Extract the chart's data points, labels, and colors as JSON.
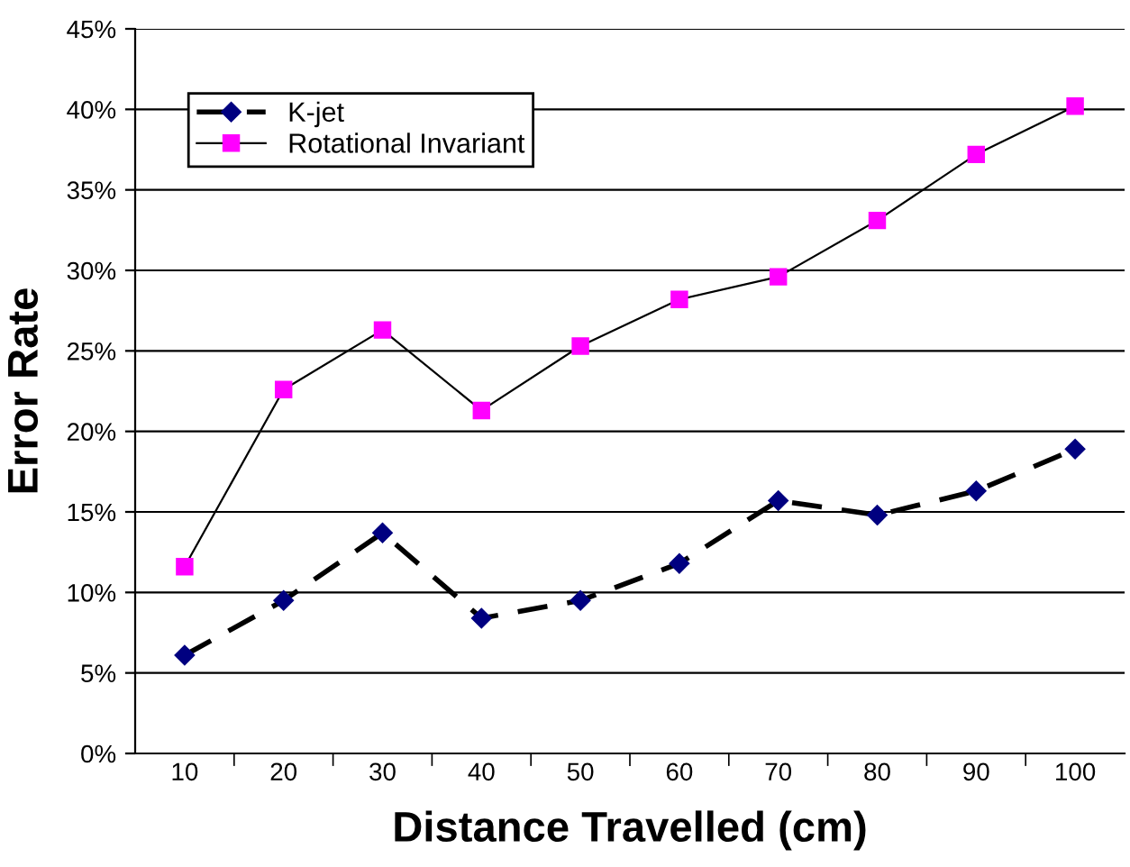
{
  "chart_data": {
    "type": "line",
    "xlabel": "Distance Travelled (cm)",
    "ylabel": "Error Rate",
    "categories": [
      "10",
      "20",
      "30",
      "40",
      "50",
      "60",
      "70",
      "80",
      "90",
      "100"
    ],
    "series": [
      {
        "name": "K-jet",
        "color": "#000080",
        "marker": "diamond",
        "line_style": "dashed",
        "values": [
          6.1,
          9.5,
          13.7,
          8.4,
          9.5,
          11.8,
          15.7,
          14.8,
          16.3,
          18.9
        ]
      },
      {
        "name": "Rotational Invariant",
        "color": "#ff00ff",
        "marker": "square",
        "line_style": "solid",
        "values": [
          11.6,
          22.6,
          26.3,
          21.3,
          25.3,
          28.2,
          29.6,
          33.1,
          37.2,
          40.2
        ]
      }
    ],
    "ylim": [
      0,
      45
    ],
    "yticks": [
      {
        "value": 0,
        "label": "0%"
      },
      {
        "value": 5,
        "label": "5%"
      },
      {
        "value": 10,
        "label": "10%"
      },
      {
        "value": 15,
        "label": "15%"
      },
      {
        "value": 20,
        "label": "20%"
      },
      {
        "value": 25,
        "label": "25%"
      },
      {
        "value": 30,
        "label": "30%"
      },
      {
        "value": 35,
        "label": "35%"
      },
      {
        "value": 40,
        "label": "40%"
      },
      {
        "value": 45,
        "label": "45%"
      }
    ],
    "grid": "y",
    "legend": "top left"
  }
}
